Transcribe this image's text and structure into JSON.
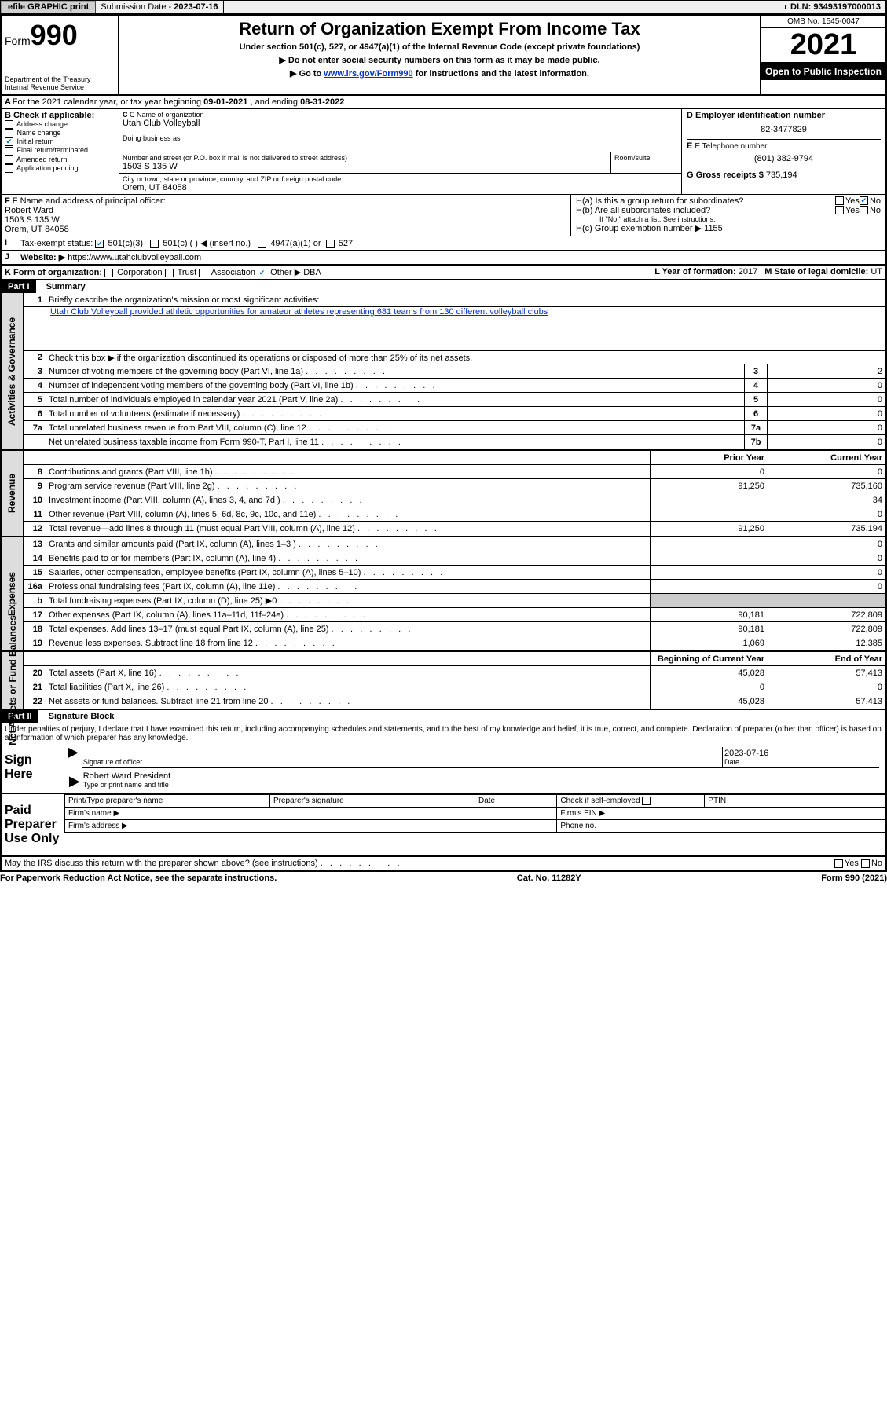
{
  "topbar": {
    "efile": "efile GRAPHIC print",
    "submission_label": "Submission Date - ",
    "submission_date": "2023-07-16",
    "dln_label": "DLN: ",
    "dln": "93493197000013"
  },
  "header": {
    "form_label": "Form",
    "form_num": "990",
    "dept": "Department of the Treasury",
    "irs": "Internal Revenue Service",
    "title": "Return of Organization Exempt From Income Tax",
    "sub1": "Under section 501(c), 527, or 4947(a)(1) of the Internal Revenue Code (except private foundations)",
    "sub2": "Do not enter social security numbers on this form as it may be made public.",
    "sub3_a": "Go to ",
    "sub3_link": "www.irs.gov/Form990",
    "sub3_b": " for instructions and the latest information.",
    "omb": "OMB No. 1545-0047",
    "year": "2021",
    "inspect": "Open to Public Inspection"
  },
  "period": {
    "a_label": "A For the 2021 calendar year, or tax year beginning ",
    "begin": "09-01-2021",
    "mid": " , and ending ",
    "end": "08-31-2022"
  },
  "b": {
    "label": "B Check if applicable:",
    "opts": [
      "Address change",
      "Name change",
      "Initial return",
      "Final return/terminated",
      "Amended return",
      "Application pending"
    ],
    "checked_idx": 2
  },
  "c": {
    "name_label": "C Name of organization",
    "name": "Utah Club Volleyball",
    "dba_label": "Doing business as",
    "addr_label": "Number and street (or P.O. box if mail is not delivered to street address)",
    "room_label": "Room/suite",
    "addr": "1503 S 135 W",
    "city_label": "City or town, state or province, country, and ZIP or foreign postal code",
    "city": "Orem, UT  84058"
  },
  "d": {
    "label": "D Employer identification number",
    "val": "82-3477829"
  },
  "e": {
    "label": "E Telephone number",
    "val": "(801) 382-9794"
  },
  "g": {
    "label": "G Gross receipts $ ",
    "val": "735,194"
  },
  "f": {
    "label": "F Name and address of principal officer:",
    "name": "Robert Ward",
    "addr1": "1503 S 135 W",
    "addr2": "Orem, UT  84058"
  },
  "h": {
    "a": "H(a)  Is this a group return for subordinates?",
    "b": "H(b)  Are all subordinates included?",
    "b_note": "If \"No,\" attach a list. See instructions.",
    "c_label": "H(c)  Group exemption number ▶",
    "c_val": "1155",
    "yes": "Yes",
    "no": "No"
  },
  "i": {
    "label": "Tax-exempt status:",
    "opts": [
      "501(c)(3)",
      "501(c) (  ) ◀ (insert no.)",
      "4947(a)(1) or",
      "527"
    ]
  },
  "j": {
    "label": "Website: ▶",
    "val": "https://www.utahclubvolleyball.com"
  },
  "k": {
    "label": "K Form of organization:",
    "opts": [
      "Corporation",
      "Trust",
      "Association",
      "Other ▶"
    ],
    "other": "DBA"
  },
  "l": {
    "label": "L Year of formation: ",
    "val": "2017"
  },
  "m": {
    "label": "M State of legal domicile: ",
    "val": "UT"
  },
  "part1": {
    "hdr": "Part I",
    "title": "Summary",
    "l1": "Briefly describe the organization's mission or most significant activities:",
    "mission": "Utah Club Volleyball provided athletic opportunities for amateur athletes representing 681 teams from 130 different volleyball clubs",
    "l2": "Check this box ▶        if the organization discontinued its operations or disposed of more than 25% of its net assets.",
    "gov": [
      {
        "n": "3",
        "t": "Number of voting members of the governing body (Part VI, line 1a)",
        "v": "2"
      },
      {
        "n": "4",
        "t": "Number of independent voting members of the governing body (Part VI, line 1b)",
        "v": "0"
      },
      {
        "n": "5",
        "t": "Total number of individuals employed in calendar year 2021 (Part V, line 2a)",
        "v": "0"
      },
      {
        "n": "6",
        "t": "Total number of volunteers (estimate if necessary)",
        "v": "0"
      },
      {
        "n": "7a",
        "t": "Total unrelated business revenue from Part VIII, column (C), line 12",
        "v": "0"
      },
      {
        "n": "",
        "t": "Net unrelated business taxable income from Form 990-T, Part I, line 11",
        "b": "7b",
        "v": "0"
      }
    ],
    "col_prior": "Prior Year",
    "col_curr": "Current Year",
    "rev": [
      {
        "n": "8",
        "t": "Contributions and grants (Part VIII, line 1h)",
        "p": "0",
        "c": "0"
      },
      {
        "n": "9",
        "t": "Program service revenue (Part VIII, line 2g)",
        "p": "91,250",
        "c": "735,160"
      },
      {
        "n": "10",
        "t": "Investment income (Part VIII, column (A), lines 3, 4, and 7d )",
        "p": "",
        "c": "34"
      },
      {
        "n": "11",
        "t": "Other revenue (Part VIII, column (A), lines 5, 6d, 8c, 9c, 10c, and 11e)",
        "p": "",
        "c": "0"
      },
      {
        "n": "12",
        "t": "Total revenue—add lines 8 through 11 (must equal Part VIII, column (A), line 12)",
        "p": "91,250",
        "c": "735,194"
      }
    ],
    "exp": [
      {
        "n": "13",
        "t": "Grants and similar amounts paid (Part IX, column (A), lines 1–3 )",
        "p": "",
        "c": "0"
      },
      {
        "n": "14",
        "t": "Benefits paid to or for members (Part IX, column (A), line 4)",
        "p": "",
        "c": "0"
      },
      {
        "n": "15",
        "t": "Salaries, other compensation, employee benefits (Part IX, column (A), lines 5–10)",
        "p": "",
        "c": "0"
      },
      {
        "n": "16a",
        "t": "Professional fundraising fees (Part IX, column (A), line 11e)",
        "p": "",
        "c": "0"
      },
      {
        "n": "b",
        "t": "Total fundraising expenses (Part IX, column (D), line 25) ▶0",
        "p": "grey",
        "c": "grey"
      },
      {
        "n": "17",
        "t": "Other expenses (Part IX, column (A), lines 11a–11d, 11f–24e)",
        "p": "90,181",
        "c": "722,809"
      },
      {
        "n": "18",
        "t": "Total expenses. Add lines 13–17 (must equal Part IX, column (A), line 25)",
        "p": "90,181",
        "c": "722,809"
      },
      {
        "n": "19",
        "t": "Revenue less expenses. Subtract line 18 from line 12",
        "p": "1,069",
        "c": "12,385"
      }
    ],
    "col_begin": "Beginning of Current Year",
    "col_end": "End of Year",
    "net": [
      {
        "n": "20",
        "t": "Total assets (Part X, line 16)",
        "p": "45,028",
        "c": "57,413"
      },
      {
        "n": "21",
        "t": "Total liabilities (Part X, line 26)",
        "p": "0",
        "c": "0"
      },
      {
        "n": "22",
        "t": "Net assets or fund balances. Subtract line 21 from line 20",
        "p": "45,028",
        "c": "57,413"
      }
    ],
    "tab_gov": "Activities & Governance",
    "tab_rev": "Revenue",
    "tab_exp": "Expenses",
    "tab_net": "Net Assets or Fund Balances"
  },
  "part2": {
    "hdr": "Part II",
    "title": "Signature Block",
    "perjury": "Under penalties of perjury, I declare that I have examined this return, including accompanying schedules and statements, and to the best of my knowledge and belief, it is true, correct, and complete. Declaration of preparer (other than officer) is based on all information of which preparer has any knowledge.",
    "sign_here": "Sign Here",
    "sig_officer": "Signature of officer",
    "sig_date": "2023-07-16",
    "date_lbl": "Date",
    "officer_name": "Robert Ward  President",
    "type_name": "Type or print name and title",
    "paid": "Paid Preparer Use Only",
    "prep_name": "Print/Type preparer's name",
    "prep_sig": "Preparer's signature",
    "prep_date": "Date",
    "self_emp": "Check        if self-employed",
    "ptin": "PTIN",
    "firm_name": "Firm's name   ▶",
    "firm_ein": "Firm's EIN ▶",
    "firm_addr": "Firm's address ▶",
    "phone": "Phone no.",
    "discuss": "May the IRS discuss this return with the preparer shown above? (see instructions)"
  },
  "footer": {
    "pra": "For Paperwork Reduction Act Notice, see the separate instructions.",
    "cat": "Cat. No. 11282Y",
    "form": "Form 990 (2021)"
  }
}
